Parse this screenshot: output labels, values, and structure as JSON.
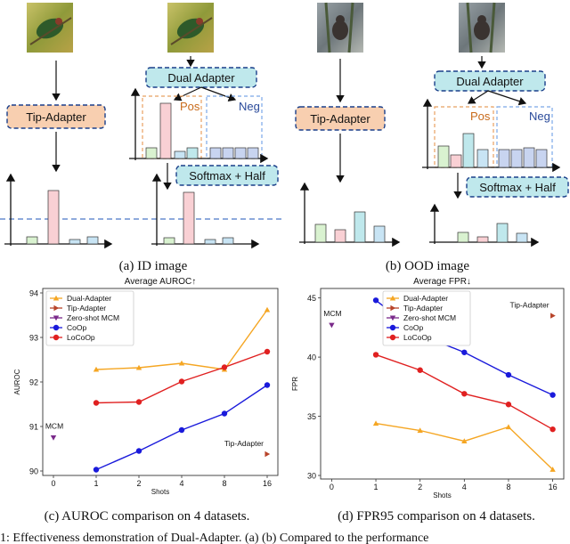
{
  "figure": {
    "id_panel": {
      "left_box": "Tip-Adapter",
      "dual_box": "Dual Adapter",
      "pos": "Pos",
      "neg": "Neg",
      "softmax": "Softmax + Half",
      "caption": "(a) ID image"
    },
    "ood_panel": {
      "left_box": "Tip-Adapter",
      "dual_box": "Dual Adapter",
      "pos": "Pos",
      "neg": "Neg",
      "softmax": "Softmax + Half",
      "caption": "(b) OOD image"
    },
    "caption_c": "(c) AUROC comparison on 4 datasets.",
    "caption_d": "(d) FPR95 comparison on 4 datasets.",
    "bottom_text": "1: Effectiveness demonstration of Dual-Adapter. (a) (b) Compared to the performance"
  },
  "chart_data": [
    {
      "type": "line",
      "title": "Average AUROC↑",
      "xlabel": "Shots",
      "ylabel": "AUROC",
      "x_ticks": [
        "0",
        "1",
        "2",
        "4",
        "8",
        "16"
      ],
      "y_ticks": [
        "90",
        "91",
        "92",
        "93",
        "94"
      ],
      "ylim": [
        89.9,
        94.1
      ],
      "series": [
        {
          "name": "Dual-Adapter",
          "color": "#f5a623",
          "marker": "triangle",
          "x": [
            1,
            2,
            4,
            8,
            16
          ],
          "values": [
            92.28,
            92.32,
            92.42,
            92.28,
            93.62
          ]
        },
        {
          "name": "Tip-Adapter",
          "color": "#b8442a",
          "marker": "triangle-right",
          "x": [
            16
          ],
          "values": [
            90.38
          ]
        },
        {
          "name": "Zero-shot MCM",
          "color": "#7a2a8a",
          "marker": "triangle-down",
          "x": [
            0
          ],
          "values": [
            90.75
          ]
        },
        {
          "name": "CoOp",
          "color": "#1a1adb",
          "marker": "circle",
          "x": [
            1,
            2,
            4,
            8,
            16
          ],
          "values": [
            90.03,
            90.45,
            90.92,
            91.29,
            91.93
          ]
        },
        {
          "name": "LoCoOp",
          "color": "#e02020",
          "marker": "circle",
          "x": [
            1,
            2,
            4,
            8,
            16
          ],
          "values": [
            91.53,
            91.55,
            92.01,
            92.33,
            92.68
          ]
        }
      ],
      "annotations": [
        {
          "text": "MCM",
          "near": "Zero-shot MCM"
        },
        {
          "text": "Tip-Adapter",
          "near": "Tip-Adapter"
        }
      ],
      "legend": "top-left"
    },
    {
      "type": "line",
      "title": "Average FPR↓",
      "xlabel": "Shots",
      "ylabel": "FPR",
      "x_ticks": [
        "0",
        "1",
        "2",
        "4",
        "8",
        "16"
      ],
      "y_ticks": [
        "30",
        "35",
        "40",
        "45"
      ],
      "ylim": [
        29.7,
        45.8
      ],
      "series": [
        {
          "name": "Dual-Adapter",
          "color": "#f5a623",
          "marker": "triangle",
          "x": [
            1,
            2,
            4,
            8,
            16
          ],
          "values": [
            34.4,
            33.8,
            32.9,
            34.1,
            30.5
          ]
        },
        {
          "name": "Tip-Adapter",
          "color": "#b8442a",
          "marker": "triangle-right",
          "x": [
            16
          ],
          "values": [
            43.5
          ]
        },
        {
          "name": "Zero-shot MCM",
          "color": "#7a2a8a",
          "marker": "triangle-down",
          "x": [
            0
          ],
          "values": [
            42.7
          ]
        },
        {
          "name": "CoOp",
          "color": "#1a1adb",
          "marker": "circle",
          "x": [
            1,
            2,
            4,
            8,
            16
          ],
          "values": [
            44.8,
            41.9,
            40.4,
            38.5,
            36.8
          ]
        },
        {
          "name": "LoCoOp",
          "color": "#e02020",
          "marker": "circle",
          "x": [
            1,
            2,
            4,
            8,
            16
          ],
          "values": [
            40.2,
            38.9,
            36.9,
            36.0,
            33.9
          ]
        }
      ],
      "annotations": [
        {
          "text": "MCM",
          "near": "Zero-shot MCM"
        },
        {
          "text": "Tip-Adapter",
          "near": "Tip-Adapter"
        }
      ],
      "legend": "top-center"
    }
  ]
}
